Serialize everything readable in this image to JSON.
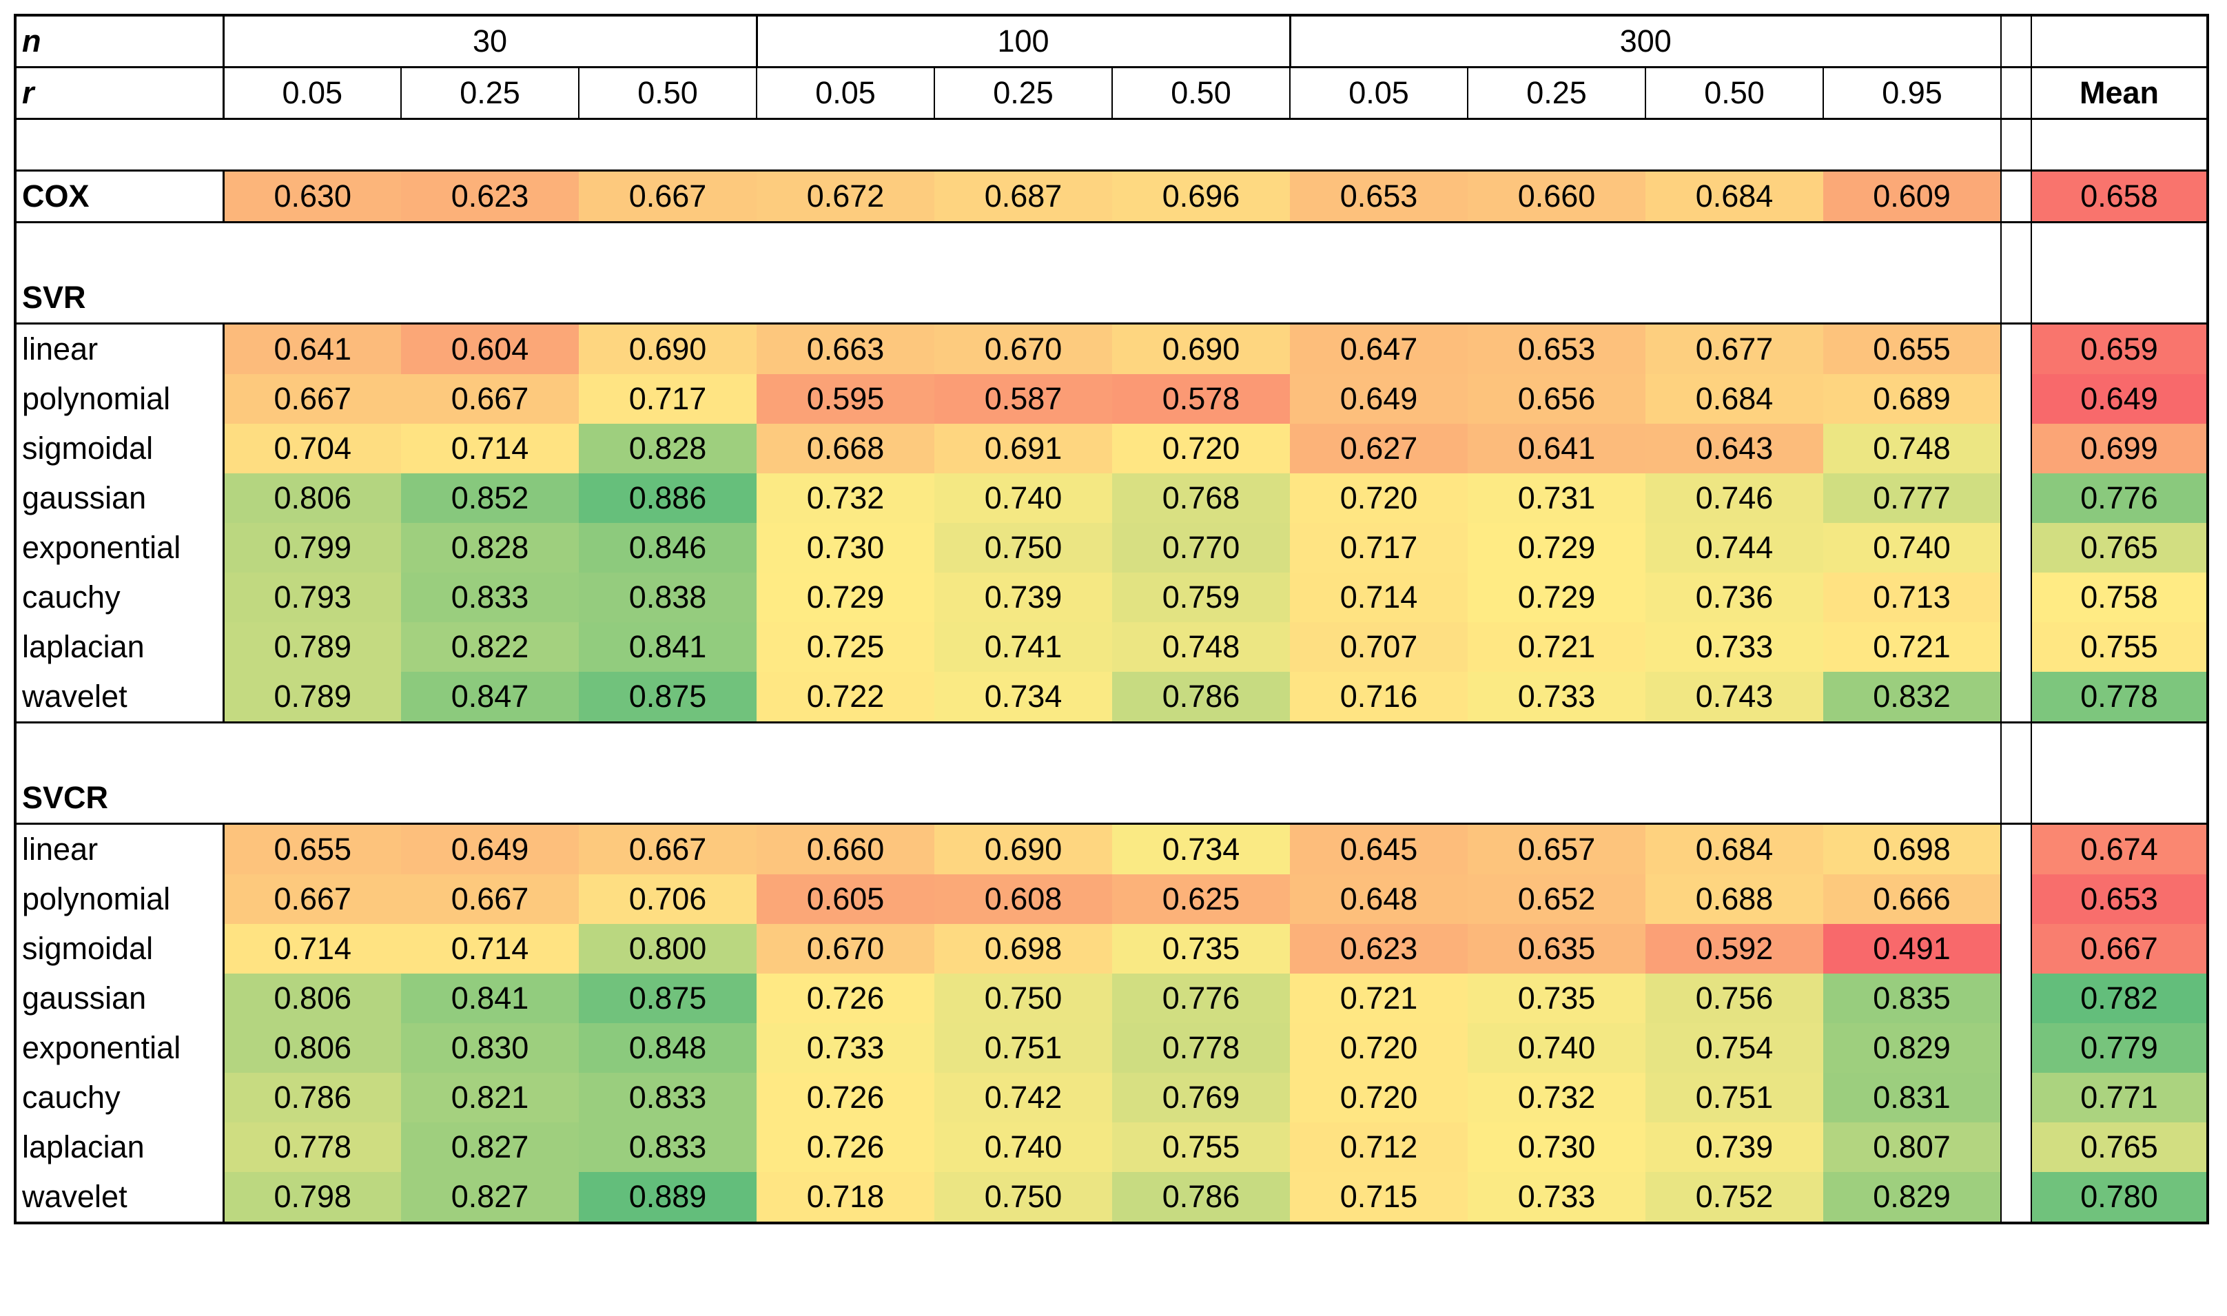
{
  "header": {
    "n_label": "n",
    "r_label": "r",
    "mean_label": "Mean",
    "groups": [
      {
        "n": "30",
        "r": [
          "0.05",
          "0.25",
          "0.50"
        ]
      },
      {
        "n": "100",
        "r": [
          "0.05",
          "0.25",
          "0.50"
        ]
      },
      {
        "n": "300",
        "r": [
          "0.05",
          "0.25",
          "0.50",
          "0.95"
        ]
      }
    ]
  },
  "sections": [
    {
      "title": "",
      "rows": [
        {
          "label": "COX",
          "values": [
            "0.630",
            "0.623",
            "0.667",
            "0.672",
            "0.687",
            "0.696",
            "0.653",
            "0.660",
            "0.684",
            "0.609"
          ],
          "mean": "0.658"
        }
      ]
    },
    {
      "title": "SVR",
      "rows": [
        {
          "label": "linear",
          "values": [
            "0.641",
            "0.604",
            "0.690",
            "0.663",
            "0.670",
            "0.690",
            "0.647",
            "0.653",
            "0.677",
            "0.655"
          ],
          "mean": "0.659"
        },
        {
          "label": "polynomial",
          "values": [
            "0.667",
            "0.667",
            "0.717",
            "0.595",
            "0.587",
            "0.578",
            "0.649",
            "0.656",
            "0.684",
            "0.689"
          ],
          "mean": "0.649"
        },
        {
          "label": "sigmoidal",
          "values": [
            "0.704",
            "0.714",
            "0.828",
            "0.668",
            "0.691",
            "0.720",
            "0.627",
            "0.641",
            "0.643",
            "0.748"
          ],
          "mean": "0.699"
        },
        {
          "label": "gaussian",
          "values": [
            "0.806",
            "0.852",
            "0.886",
            "0.732",
            "0.740",
            "0.768",
            "0.720",
            "0.731",
            "0.746",
            "0.777"
          ],
          "mean": "0.776"
        },
        {
          "label": "exponential",
          "values": [
            "0.799",
            "0.828",
            "0.846",
            "0.730",
            "0.750",
            "0.770",
            "0.717",
            "0.729",
            "0.744",
            "0.740"
          ],
          "mean": "0.765"
        },
        {
          "label": "cauchy",
          "values": [
            "0.793",
            "0.833",
            "0.838",
            "0.729",
            "0.739",
            "0.759",
            "0.714",
            "0.729",
            "0.736",
            "0.713"
          ],
          "mean": "0.758"
        },
        {
          "label": "laplacian",
          "values": [
            "0.789",
            "0.822",
            "0.841",
            "0.725",
            "0.741",
            "0.748",
            "0.707",
            "0.721",
            "0.733",
            "0.721"
          ],
          "mean": "0.755"
        },
        {
          "label": "wavelet",
          "values": [
            "0.789",
            "0.847",
            "0.875",
            "0.722",
            "0.734",
            "0.786",
            "0.716",
            "0.733",
            "0.743",
            "0.832"
          ],
          "mean": "0.778"
        }
      ]
    },
    {
      "title": "SVCR",
      "rows": [
        {
          "label": "linear",
          "values": [
            "0.655",
            "0.649",
            "0.667",
            "0.660",
            "0.690",
            "0.734",
            "0.645",
            "0.657",
            "0.684",
            "0.698"
          ],
          "mean": "0.674"
        },
        {
          "label": "polynomial",
          "values": [
            "0.667",
            "0.667",
            "0.706",
            "0.605",
            "0.608",
            "0.625",
            "0.648",
            "0.652",
            "0.688",
            "0.666"
          ],
          "mean": "0.653"
        },
        {
          "label": "sigmoidal",
          "values": [
            "0.714",
            "0.714",
            "0.800",
            "0.670",
            "0.698",
            "0.735",
            "0.623",
            "0.635",
            "0.592",
            "0.491"
          ],
          "mean": "0.667"
        },
        {
          "label": "gaussian",
          "values": [
            "0.806",
            "0.841",
            "0.875",
            "0.726",
            "0.750",
            "0.776",
            "0.721",
            "0.735",
            "0.756",
            "0.835"
          ],
          "mean": "0.782"
        },
        {
          "label": "exponential",
          "values": [
            "0.806",
            "0.830",
            "0.848",
            "0.733",
            "0.751",
            "0.778",
            "0.720",
            "0.740",
            "0.754",
            "0.829"
          ],
          "mean": "0.779"
        },
        {
          "label": "cauchy",
          "values": [
            "0.786",
            "0.821",
            "0.833",
            "0.726",
            "0.742",
            "0.769",
            "0.720",
            "0.732",
            "0.751",
            "0.831"
          ],
          "mean": "0.771"
        },
        {
          "label": "laplacian",
          "values": [
            "0.778",
            "0.827",
            "0.833",
            "0.726",
            "0.740",
            "0.755",
            "0.712",
            "0.730",
            "0.739",
            "0.807"
          ],
          "mean": "0.765"
        },
        {
          "label": "wavelet",
          "values": [
            "0.798",
            "0.827",
            "0.889",
            "0.718",
            "0.750",
            "0.786",
            "0.715",
            "0.733",
            "0.752",
            "0.829"
          ],
          "mean": "0.780"
        }
      ]
    }
  ],
  "colors": {
    "scale_low": "#f8696b",
    "scale_mid": "#ffeb84",
    "scale_high": "#63be7b",
    "border": "#000000"
  }
}
